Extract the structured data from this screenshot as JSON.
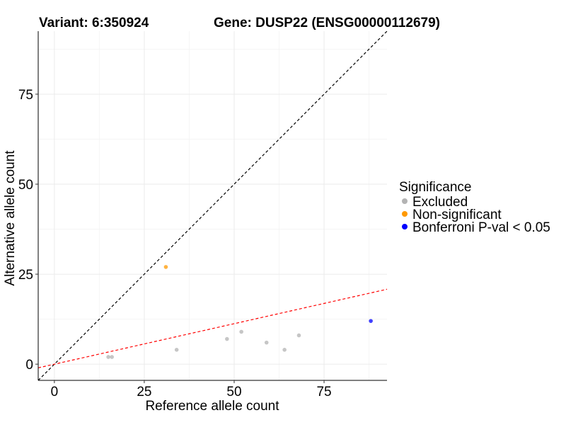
{
  "chart_data": {
    "type": "scatter",
    "title_left": "Variant: 6:350924",
    "title_right": "Gene: DUSP22 (ENSG00000112679)",
    "xlabel": "Reference allele count",
    "ylabel": "Alternative allele count",
    "xlim": [
      -4.5,
      92.5
    ],
    "ylim": [
      -4.5,
      92.5
    ],
    "xticks": [
      0,
      25,
      50,
      75
    ],
    "yticks": [
      0,
      25,
      50,
      75
    ],
    "grid": true,
    "legend": {
      "title": "Significance",
      "position": "right",
      "entries": [
        {
          "label": "Excluded",
          "color": "#b3b3b3"
        },
        {
          "label": "Non-significant",
          "color": "#ff9900"
        },
        {
          "label": "Bonferroni P-val < 0.05",
          "color": "#0000ff"
        }
      ]
    },
    "points": [
      {
        "x": 15,
        "y": 2,
        "group": "Excluded"
      },
      {
        "x": 16,
        "y": 2,
        "group": "Excluded"
      },
      {
        "x": 34,
        "y": 4,
        "group": "Excluded"
      },
      {
        "x": 48,
        "y": 7,
        "group": "Excluded"
      },
      {
        "x": 52,
        "y": 9,
        "group": "Excluded"
      },
      {
        "x": 59,
        "y": 6,
        "group": "Excluded"
      },
      {
        "x": 64,
        "y": 4,
        "group": "Excluded"
      },
      {
        "x": 68,
        "y": 8,
        "group": "Excluded"
      },
      {
        "x": 31,
        "y": 27,
        "group": "Non-significant"
      },
      {
        "x": 88,
        "y": 12,
        "group": "Bonferroni P-val < 0.05"
      }
    ],
    "lines": [
      {
        "name": "identity-line",
        "slope": 1,
        "intercept": 0,
        "color": "#000000",
        "dashed": true
      },
      {
        "name": "fit-line",
        "slope": 0.225,
        "intercept": 0,
        "color": "#ff0000",
        "dashed": true
      }
    ]
  }
}
